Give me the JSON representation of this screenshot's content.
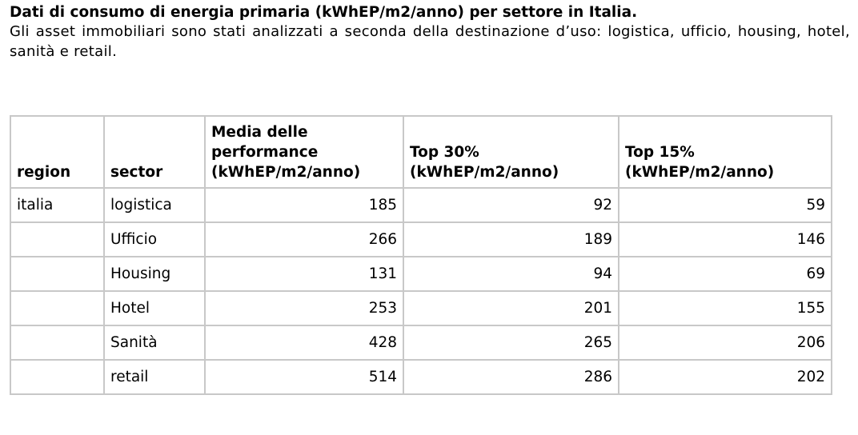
{
  "header": {
    "title": "Dati di consumo di energia primaria (kWhEP/m2/anno) per settore in Italia.",
    "subtitle": "Gli asset immobiliari sono stati analizzati a seconda della destinazione d’uso: logistica, ufficio, housing, hotel, sanità e retail."
  },
  "table": {
    "columns": [
      [
        "region"
      ],
      [
        "sector"
      ],
      [
        "Media delle",
        "performance",
        "(kWhEP/m2/anno)"
      ],
      [
        "Top 30%",
        "(kWhEP/m2/anno)"
      ],
      [
        "Top 15%",
        "(kWhEP/m2/anno)"
      ]
    ],
    "rows": [
      [
        "italia",
        "logistica",
        185,
        92,
        59
      ],
      [
        null,
        "Ufficio",
        266,
        189,
        146
      ],
      [
        null,
        "Housing",
        131,
        94,
        69
      ],
      [
        null,
        "Hotel",
        253,
        201,
        155
      ],
      [
        null,
        "Sanità",
        428,
        265,
        206
      ],
      [
        null,
        "retail",
        514,
        286,
        202
      ]
    ]
  }
}
